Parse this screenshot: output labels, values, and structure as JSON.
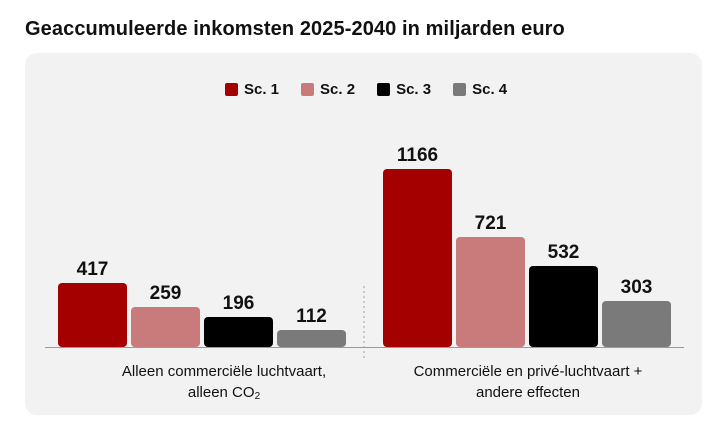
{
  "title": "Geaccumuleerde inkomsten 2025-2040 in miljarden euro",
  "legend": [
    {
      "label": "Sc. 1",
      "color": "#a50000"
    },
    {
      "label": "Sc. 2",
      "color": "#c97b7b"
    },
    {
      "label": "Sc. 3",
      "color": "#000000"
    },
    {
      "label": "Sc. 4",
      "color": "#7a7a7a"
    }
  ],
  "group_labels": {
    "left_line1": "Alleen commerciële luchtvaart,",
    "left_line2_prefix": "alleen CO",
    "left_line2_sub": "2",
    "right_line1": "Commerciële en privé-luchtvaart +",
    "right_line2": "andere effecten"
  },
  "chart_data": {
    "type": "bar",
    "title": "Geaccumuleerde inkomsten 2025-2040 in miljarden euro",
    "categories": [
      "Alleen commerciële luchtvaart, alleen CO₂",
      "Commerciële en privé-luchtvaart + andere effecten"
    ],
    "series": [
      {
        "name": "Sc. 1",
        "color": "#a50000",
        "values": [
          417,
          1166
        ]
      },
      {
        "name": "Sc. 2",
        "color": "#c97b7b",
        "values": [
          259,
          721
        ]
      },
      {
        "name": "Sc. 3",
        "color": "#000000",
        "values": [
          196,
          532
        ]
      },
      {
        "name": "Sc. 4",
        "color": "#7a7a7a",
        "values": [
          112,
          303
        ]
      }
    ],
    "ylim": [
      0,
      1166
    ],
    "xlabel": "",
    "ylabel": "",
    "legend_position": "top-center",
    "grid": false
  }
}
